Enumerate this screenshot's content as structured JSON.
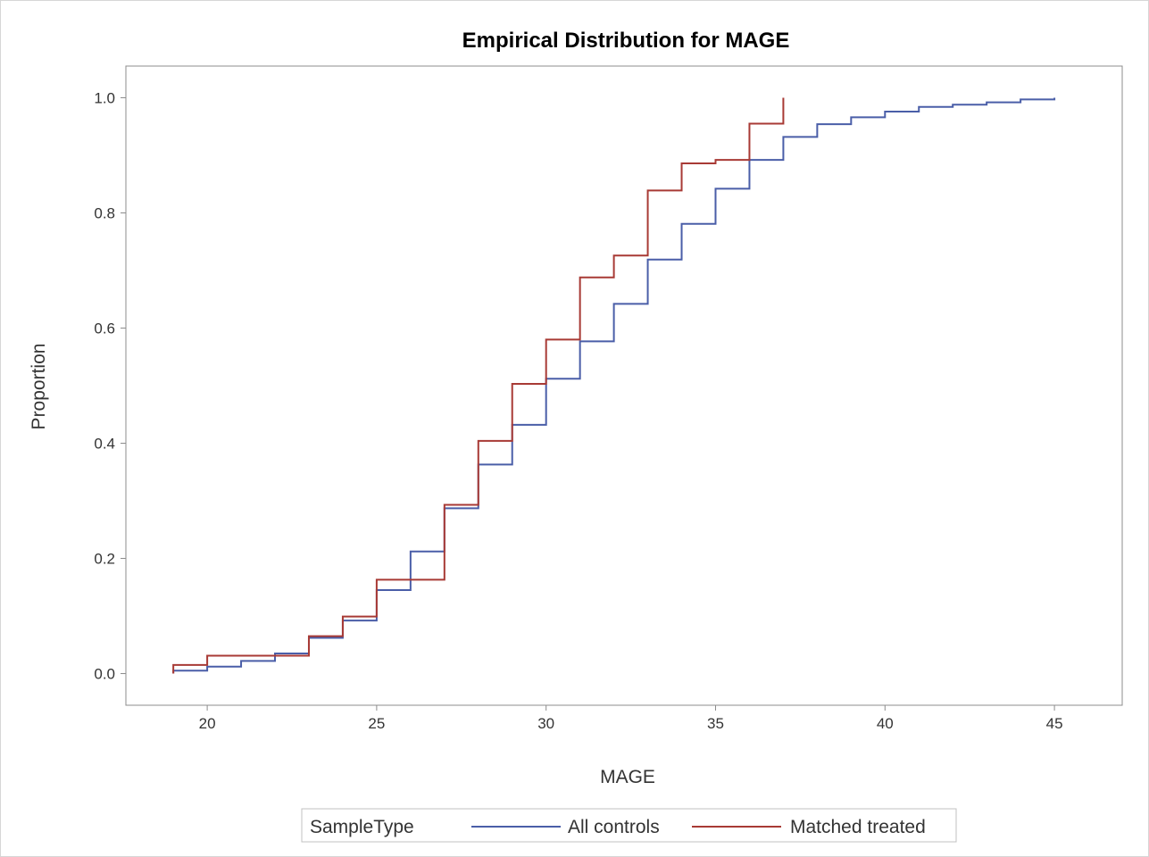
{
  "chart_data": {
    "type": "line",
    "step": true,
    "title": "Empirical Distribution for MAGE",
    "xlabel": "MAGE",
    "ylabel": "Proportion",
    "xlim": [
      17.6,
      47.0
    ],
    "ylim": [
      -0.055,
      1.055
    ],
    "xticks": [
      20,
      25,
      30,
      35,
      40,
      45
    ],
    "yticks": [
      0.0,
      0.2,
      0.4,
      0.6,
      0.8,
      1.0
    ],
    "ytick_labels": [
      "0.0",
      "0.2",
      "0.4",
      "0.6",
      "0.8",
      "1.0"
    ],
    "grid": false,
    "legend": {
      "title": "SampleType",
      "placement": "bottom"
    },
    "series": [
      {
        "name": "All controls",
        "color": "#4a5ea8",
        "x": [
          19,
          20,
          21,
          22,
          23,
          24,
          25,
          26,
          27,
          28,
          29,
          30,
          31,
          32,
          33,
          34,
          35,
          36,
          37,
          38,
          39,
          40,
          41,
          42,
          43,
          44,
          45
        ],
        "y": [
          0.005,
          0.012,
          0.022,
          0.035,
          0.062,
          0.092,
          0.145,
          0.212,
          0.287,
          0.363,
          0.432,
          0.512,
          0.577,
          0.642,
          0.719,
          0.781,
          0.842,
          0.892,
          0.932,
          0.954,
          0.966,
          0.976,
          0.984,
          0.988,
          0.992,
          0.997,
          1.0
        ]
      },
      {
        "name": "Matched treated",
        "color": "#a83a35",
        "x": [
          19,
          20,
          21,
          22,
          23,
          24,
          25,
          26,
          27,
          28,
          29,
          30,
          31,
          32,
          33,
          34,
          35,
          36,
          37
        ],
        "y": [
          0.015,
          0.031,
          0.031,
          0.031,
          0.065,
          0.099,
          0.163,
          0.163,
          0.293,
          0.404,
          0.503,
          0.58,
          0.688,
          0.726,
          0.839,
          0.886,
          0.892,
          0.955,
          1.0
        ]
      }
    ]
  }
}
